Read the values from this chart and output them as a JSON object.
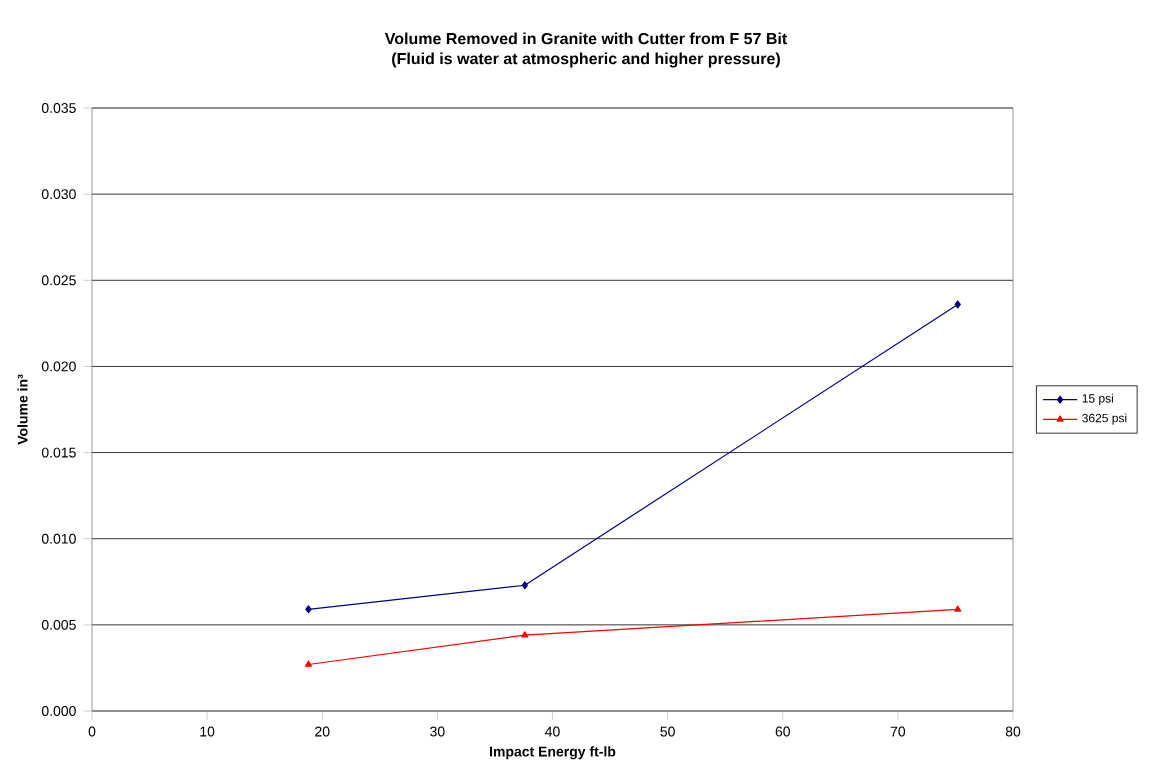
{
  "chart_data": {
    "type": "line",
    "title": "Volume Removed in Granite with Cutter from F 57 Bit",
    "subtitle": "(Fluid is water at atmospheric and higher pressure)",
    "xlabel": "Impact Energy ft-lb",
    "ylabel": "Volume in³",
    "x": [
      18.8,
      37.6,
      75.2
    ],
    "series": [
      {
        "name": "15 psi",
        "color": "#000080",
        "marker": "diamond",
        "values": [
          0.0059,
          0.0073,
          0.0236
        ]
      },
      {
        "name": "3625 psi",
        "color": "#ff0000",
        "marker": "triangle",
        "values": [
          0.0027,
          0.0044,
          0.0059
        ]
      }
    ],
    "xlim": [
      0,
      80
    ],
    "xticks": [
      0,
      10,
      20,
      30,
      40,
      50,
      60,
      70,
      80
    ],
    "ylim": [
      0,
      0.035
    ],
    "yticks": [
      {
        "value": 0,
        "label": "0.000"
      },
      {
        "value": 0.005,
        "label": "0.005"
      },
      {
        "value": 0.01,
        "label": "0.010"
      },
      {
        "value": 0.015,
        "label": "0.015"
      },
      {
        "value": 0.02,
        "label": "0.020"
      },
      {
        "value": 0.025,
        "label": "0.025"
      },
      {
        "value": 0.03,
        "label": "0.030"
      },
      {
        "value": 0.035,
        "label": "0.035"
      }
    ],
    "grid": "y",
    "legend": "right"
  }
}
